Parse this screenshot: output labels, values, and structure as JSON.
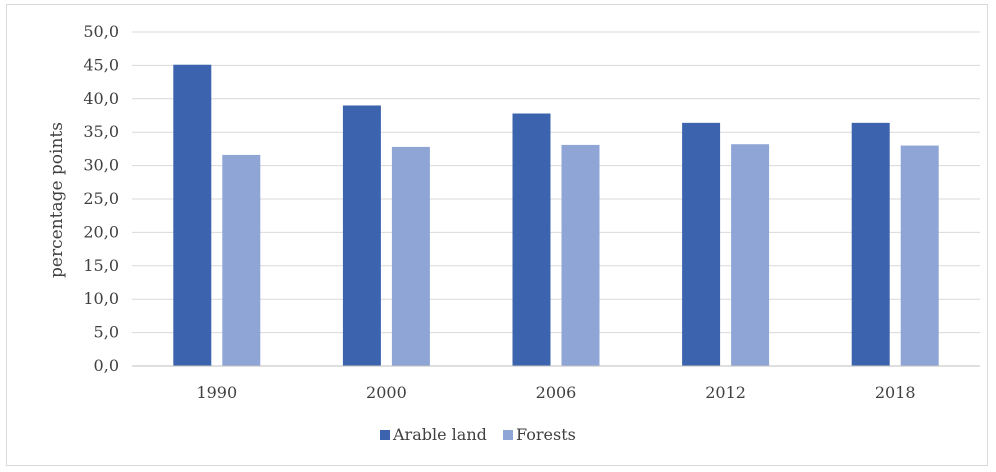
{
  "chart_data": {
    "type": "bar",
    "title": "",
    "xlabel": "",
    "ylabel": "percentage points",
    "categories": [
      "1990",
      "2000",
      "2006",
      "2012",
      "2018"
    ],
    "series": [
      {
        "name": "Arable land",
        "color": "#3c64ae",
        "values": [
          45.1,
          39.0,
          37.8,
          36.4,
          36.4
        ]
      },
      {
        "name": "Forests",
        "color": "#8fa5d6",
        "values": [
          31.6,
          32.8,
          33.1,
          33.2,
          33.0
        ]
      }
    ],
    "ylim": [
      0,
      50
    ],
    "yticks": [
      "0,0",
      "5,0",
      "10,0",
      "15,0",
      "20,0",
      "25,0",
      "30,0",
      "35,0",
      "40,0",
      "45,0",
      "50,0"
    ],
    "grid": true,
    "legend": "bottom"
  }
}
